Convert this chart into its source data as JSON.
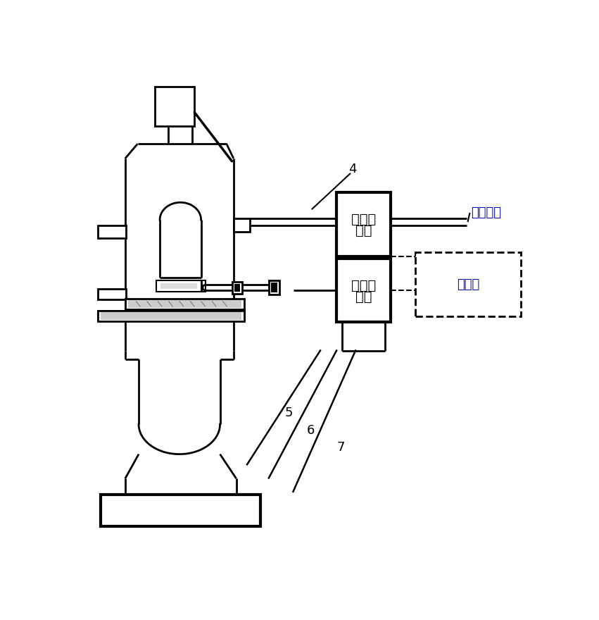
{
  "bg_color": "#ffffff",
  "lc": "#000000",
  "box1_l1": "第一电",
  "box1_l2": "磁阀",
  "box2_l1": "第二电",
  "box2_l2": "磁阀",
  "label_gas": "通入气瓶",
  "label_ctrl": "控制柜",
  "lbl4": "4",
  "lbl5": "5",
  "lbl6": "6",
  "lbl7": "7",
  "gas_color": "#0000cc",
  "ctrl_color": "#0000cc",
  "figsize": [
    8.51,
    8.8
  ],
  "dpi": 100
}
